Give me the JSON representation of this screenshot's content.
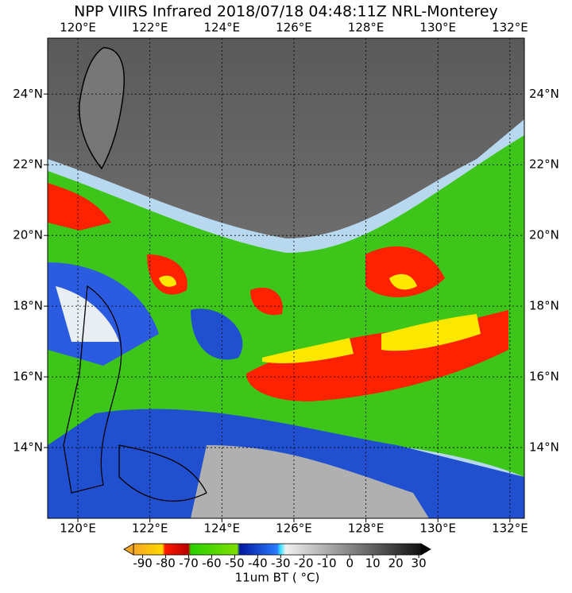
{
  "title": "NPP VIIRS Infrared 2018/07/18 04:48:11Z NRL-Monterey",
  "map": {
    "xlim": [
      119.16,
      132.4
    ],
    "ylim": [
      12.0,
      25.58
    ],
    "lon_ticks": [
      {
        "value": 120,
        "label": "120°E"
      },
      {
        "value": 122,
        "label": "122°E"
      },
      {
        "value": 124,
        "label": "124°E"
      },
      {
        "value": 126,
        "label": "126°E"
      },
      {
        "value": 128,
        "label": "128°E"
      },
      {
        "value": 130,
        "label": "130°E"
      },
      {
        "value": 132,
        "label": "132°E"
      }
    ],
    "lat_ticks": [
      {
        "value": 14,
        "label": "14°N"
      },
      {
        "value": 16,
        "label": "16°N"
      },
      {
        "value": 18,
        "label": "18°N"
      },
      {
        "value": 20,
        "label": "20°N"
      },
      {
        "value": 22,
        "label": "22°N"
      },
      {
        "value": 24,
        "label": "24°N"
      }
    ]
  },
  "colorbar": {
    "label": "11um BT ( °C)",
    "lim": [
      -94,
      31
    ],
    "ticks": [
      -90,
      -80,
      -70,
      -60,
      -50,
      -40,
      -30,
      -20,
      -10,
      0,
      10,
      20,
      30
    ]
  }
}
